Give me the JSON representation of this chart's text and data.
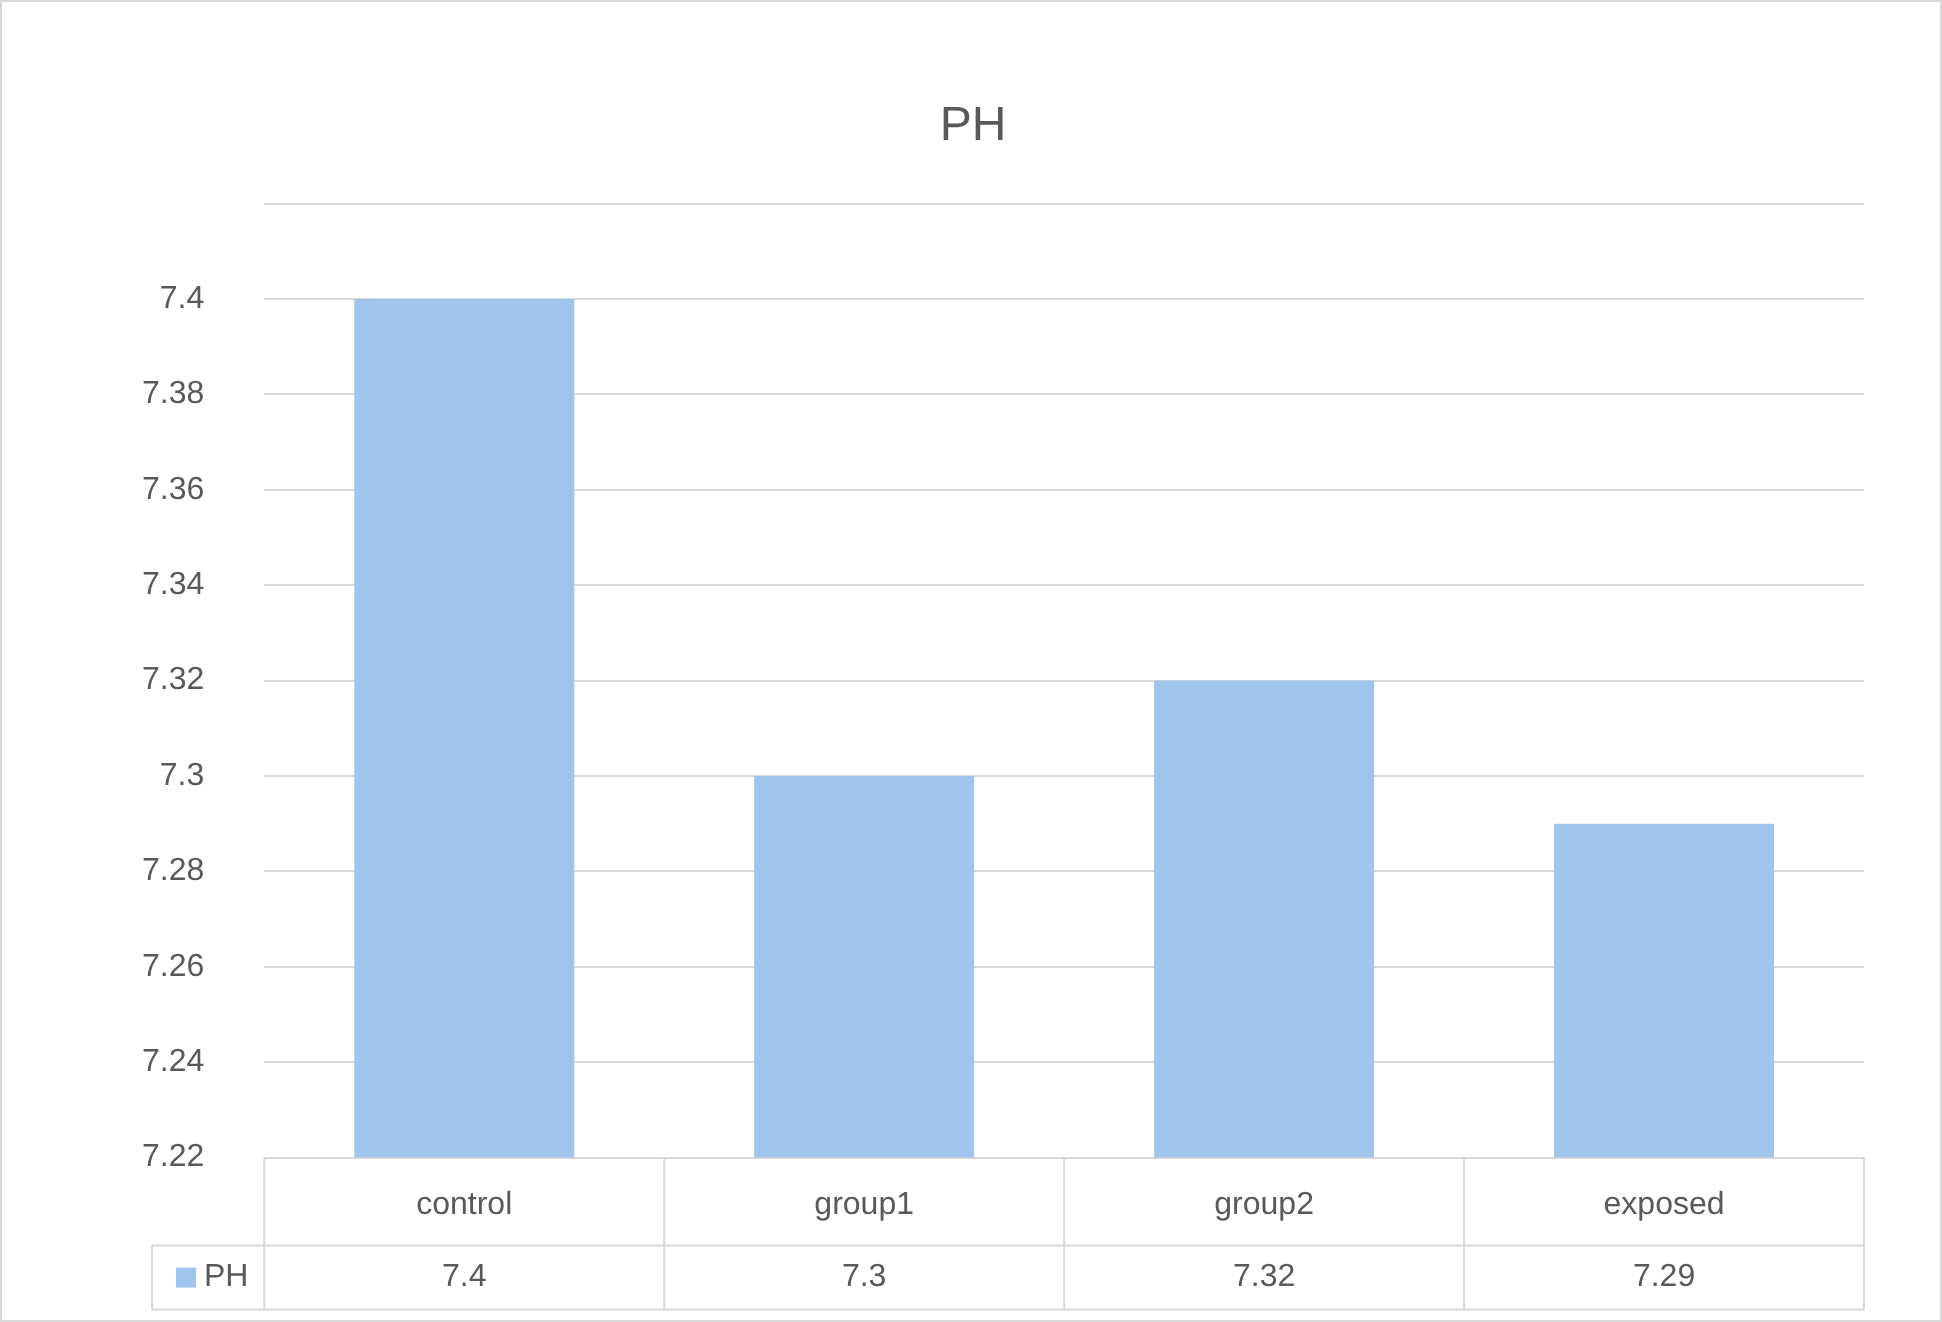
{
  "chart_data": {
    "type": "bar",
    "title": "PH",
    "categories": [
      "control",
      "group1",
      "group2",
      "exposed"
    ],
    "series": [
      {
        "name": "PH",
        "color": "#9fc5ec",
        "values": [
          7.4,
          7.3,
          7.32,
          7.29
        ]
      }
    ],
    "ylim": [
      7.22,
      7.42
    ],
    "yticks": [
      7.22,
      7.24,
      7.26,
      7.28,
      7.3,
      7.32,
      7.34,
      7.36,
      7.38,
      7.4,
      {
        "value": 7.42,
        "label": null
      }
    ],
    "grid": "y",
    "legend": "bottom",
    "data_labels": true
  }
}
